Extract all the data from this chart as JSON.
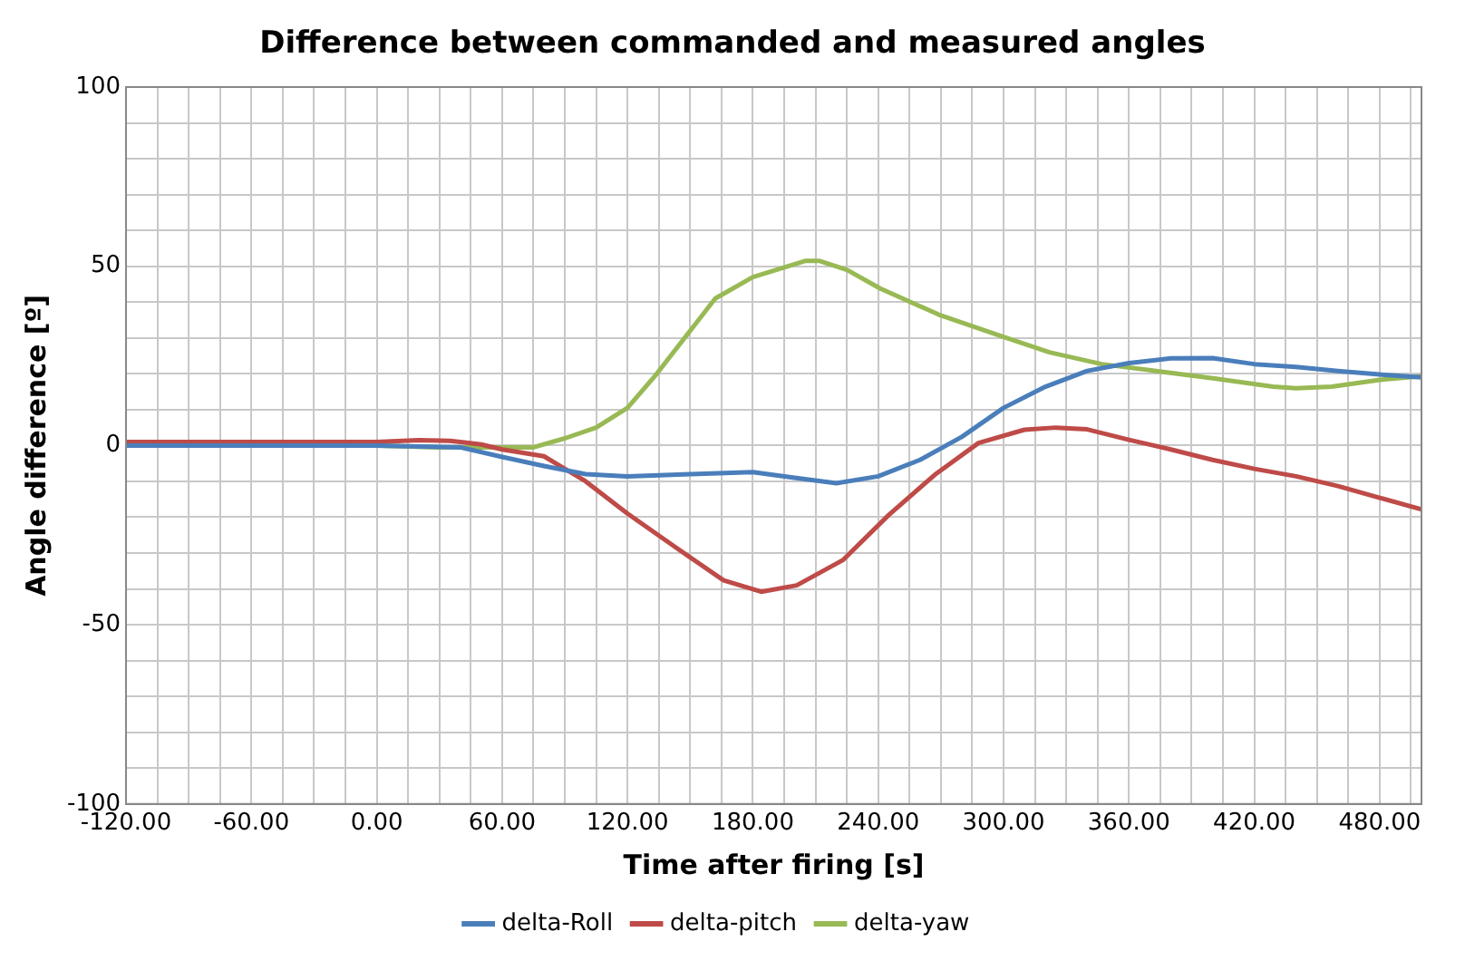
{
  "chart_data": {
    "type": "line",
    "title": "Difference between commanded and measured angles",
    "xlabel": "Time after firing [s]",
    "ylabel": "Angle difference [º]",
    "xlim": [
      -120,
      500
    ],
    "ylim": [
      -100,
      100
    ],
    "xticks": [
      {
        "value": -120,
        "label": "-120.00"
      },
      {
        "value": -105,
        "label": null
      },
      {
        "value": -90,
        "label": null
      },
      {
        "value": -75,
        "label": null
      },
      {
        "value": -60,
        "label": "-60.00"
      },
      {
        "value": -45,
        "label": null
      },
      {
        "value": -30,
        "label": null
      },
      {
        "value": -15,
        "label": null
      },
      {
        "value": 0,
        "label": "0.00"
      },
      {
        "value": 15,
        "label": null
      },
      {
        "value": 30,
        "label": null
      },
      {
        "value": 45,
        "label": null
      },
      {
        "value": 60,
        "label": "60.00"
      },
      {
        "value": 75,
        "label": null
      },
      {
        "value": 90,
        "label": null
      },
      {
        "value": 105,
        "label": null
      },
      {
        "value": 120,
        "label": "120.00"
      },
      {
        "value": 135,
        "label": null
      },
      {
        "value": 150,
        "label": null
      },
      {
        "value": 165,
        "label": null
      },
      {
        "value": 180,
        "label": "180.00"
      },
      {
        "value": 195,
        "label": null
      },
      {
        "value": 210,
        "label": null
      },
      {
        "value": 225,
        "label": null
      },
      {
        "value": 240,
        "label": "240.00"
      },
      {
        "value": 255,
        "label": null
      },
      {
        "value": 270,
        "label": null
      },
      {
        "value": 285,
        "label": null
      },
      {
        "value": 300,
        "label": "300.00"
      },
      {
        "value": 315,
        "label": null
      },
      {
        "value": 330,
        "label": null
      },
      {
        "value": 345,
        "label": null
      },
      {
        "value": 360,
        "label": "360.00"
      },
      {
        "value": 375,
        "label": null
      },
      {
        "value": 390,
        "label": null
      },
      {
        "value": 405,
        "label": null
      },
      {
        "value": 420,
        "label": "420.00"
      },
      {
        "value": 435,
        "label": null
      },
      {
        "value": 450,
        "label": null
      },
      {
        "value": 465,
        "label": null
      },
      {
        "value": 480,
        "label": "480.00"
      },
      {
        "value": 495,
        "label": null
      }
    ],
    "yticks": [
      -100,
      {
        "value": -90,
        "label": null
      },
      {
        "value": -80,
        "label": null
      },
      {
        "value": -70,
        "label": null
      },
      {
        "value": -60,
        "label": null
      },
      -50,
      {
        "value": -40,
        "label": null
      },
      {
        "value": -30,
        "label": null
      },
      {
        "value": -20,
        "label": null
      },
      {
        "value": -10,
        "label": null
      },
      0,
      {
        "value": 10,
        "label": null
      },
      {
        "value": 20,
        "label": null
      },
      {
        "value": 30,
        "label": null
      },
      {
        "value": 40,
        "label": null
      },
      50,
      {
        "value": 60,
        "label": null
      },
      {
        "value": 70,
        "label": null
      },
      {
        "value": 80,
        "label": null
      },
      {
        "value": 90,
        "label": null
      },
      100
    ],
    "grid": true,
    "legend": "bottom",
    "marker": "none",
    "line_style": "solid",
    "series": [
      {
        "name": "delta-Roll",
        "color": "#4a7ebb",
        "x": [
          -120,
          0,
          40,
          60,
          80,
          100,
          120,
          150,
          180,
          200,
          220,
          240,
          260,
          280,
          300,
          320,
          340,
          360,
          380,
          400,
          420,
          440,
          460,
          480,
          500
        ],
        "values": [
          0,
          0,
          -0.5,
          -3.2,
          -5.7,
          -8,
          -8.6,
          -8,
          -7.4,
          -9,
          -10.5,
          -8.6,
          -4,
          2.4,
          10.5,
          16.4,
          20.8,
          23,
          24.3,
          24.4,
          22.7,
          21.9,
          20.8,
          19.8,
          19
        ]
      },
      {
        "name": "delta-pitch",
        "color": "#be4b48",
        "x": [
          -120,
          0,
          20,
          35,
          50,
          60,
          80,
          100,
          120,
          144,
          166,
          184,
          201,
          223,
          245,
          267,
          288,
          310,
          325,
          340,
          360,
          380,
          400,
          420,
          440,
          460,
          480,
          500
        ],
        "values": [
          1,
          1,
          1.5,
          1.3,
          0.3,
          -1.1,
          -3,
          -10,
          -19,
          -28.8,
          -37.6,
          -40.8,
          -39,
          -32,
          -19.4,
          -8.2,
          0.7,
          4.4,
          5,
          4.5,
          1.6,
          -1.1,
          -4,
          -6.5,
          -8.6,
          -11.3,
          -14.6,
          -17.8
        ]
      },
      {
        "name": "delta-yaw",
        "color": "#98b954",
        "x": [
          -120,
          0,
          30,
          75,
          90,
          105,
          120,
          134,
          162,
          180,
          205,
          212,
          225,
          241,
          269,
          300,
          322,
          347,
          373,
          401,
          429,
          440,
          457,
          480,
          500
        ],
        "values": [
          0,
          0,
          -0.5,
          -0.5,
          2,
          5,
          10.5,
          20,
          41,
          47,
          51.5,
          51.5,
          49,
          43.8,
          36.5,
          30.3,
          26,
          22.7,
          20.8,
          18.7,
          16.4,
          16,
          16.4,
          18.3,
          19.3
        ]
      }
    ]
  }
}
